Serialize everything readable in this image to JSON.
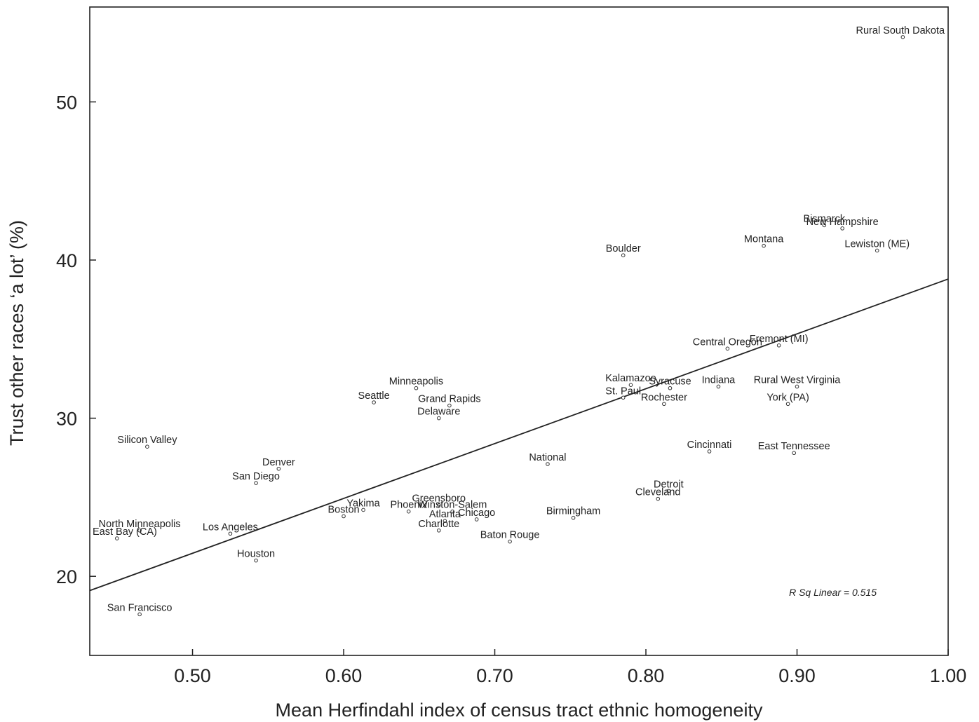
{
  "chart_data": {
    "type": "scatter",
    "xlabel": "Mean Herfindahl index of census tract ethnic homogeneity",
    "ylabel": "Trust other races ‘a lot’ (%)",
    "xlim": [
      0.432,
      1.0
    ],
    "ylim": [
      15,
      56
    ],
    "xticks": [
      "0.50",
      "0.60",
      "0.70",
      "0.80",
      "0.90",
      "1.00"
    ],
    "yticks": [
      "20",
      "30",
      "40",
      "50"
    ],
    "grid": false,
    "annotation": "R Sq Linear = 0.515",
    "fit_line": {
      "x": [
        0.432,
        1.0
      ],
      "y": [
        19.1,
        38.8
      ]
    },
    "points": [
      {
        "label": "Rural South Dakota",
        "x": 0.97,
        "y": 54.1
      },
      {
        "label": "Bismarck",
        "x": 0.918,
        "y": 42.2
      },
      {
        "label": "New Hampshire",
        "x": 0.93,
        "y": 42.0
      },
      {
        "label": "Montana",
        "x": 0.878,
        "y": 40.9
      },
      {
        "label": "Lewiston (ME)",
        "x": 0.953,
        "y": 40.6
      },
      {
        "label": "Boulder",
        "x": 0.785,
        "y": 40.3
      },
      {
        "label": "Fremont (MI)",
        "x": 0.888,
        "y": 34.6
      },
      {
        "label": "Central Oregon",
        "x": 0.854,
        "y": 34.4
      },
      {
        "label": "Kalamazoo",
        "x": 0.79,
        "y": 32.1
      },
      {
        "label": "Syracuse",
        "x": 0.816,
        "y": 31.9
      },
      {
        "label": "Indiana",
        "x": 0.848,
        "y": 32.0
      },
      {
        "label": "Rural West Virginia",
        "x": 0.9,
        "y": 32.0
      },
      {
        "label": "St. Paul",
        "x": 0.785,
        "y": 31.3
      },
      {
        "label": "Rochester",
        "x": 0.812,
        "y": 30.9
      },
      {
        "label": "York (PA)",
        "x": 0.894,
        "y": 30.9
      },
      {
        "label": "Minneapolis",
        "x": 0.648,
        "y": 31.9
      },
      {
        "label": "Seattle",
        "x": 0.62,
        "y": 31.0
      },
      {
        "label": "Grand Rapids",
        "x": 0.67,
        "y": 30.8
      },
      {
        "label": "Delaware",
        "x": 0.663,
        "y": 30.0
      },
      {
        "label": "Silicon Valley",
        "x": 0.47,
        "y": 28.2
      },
      {
        "label": "Cincinnati",
        "x": 0.842,
        "y": 27.9
      },
      {
        "label": "East Tennessee",
        "x": 0.898,
        "y": 27.8
      },
      {
        "label": "National",
        "x": 0.735,
        "y": 27.1
      },
      {
        "label": "Denver",
        "x": 0.557,
        "y": 26.8
      },
      {
        "label": "San Diego",
        "x": 0.542,
        "y": 25.9
      },
      {
        "label": "Detroit",
        "x": 0.815,
        "y": 25.4
      },
      {
        "label": "Cleveland",
        "x": 0.808,
        "y": 24.9
      },
      {
        "label": "Greensboro",
        "x": 0.663,
        "y": 24.5
      },
      {
        "label": "Yakima",
        "x": 0.613,
        "y": 24.2
      },
      {
        "label": "Winston-Salem",
        "x": 0.672,
        "y": 24.1
      },
      {
        "label": "Phoenix",
        "x": 0.643,
        "y": 24.1
      },
      {
        "label": "Birmingham",
        "x": 0.752,
        "y": 23.7
      },
      {
        "label": "Boston",
        "x": 0.6,
        "y": 23.8
      },
      {
        "label": "Chicago",
        "x": 0.688,
        "y": 23.6
      },
      {
        "label": "Atlanta",
        "x": 0.667,
        "y": 23.5
      },
      {
        "label": "Charlotte",
        "x": 0.663,
        "y": 22.9
      },
      {
        "label": "North Minneapolis",
        "x": 0.465,
        "y": 22.9
      },
      {
        "label": "Los Angeles",
        "x": 0.525,
        "y": 22.7
      },
      {
        "label": "East Bay (CA)",
        "x": 0.45,
        "y": 22.4
      },
      {
        "label": "Baton Rouge",
        "x": 0.71,
        "y": 22.2
      },
      {
        "label": "Houston",
        "x": 0.542,
        "y": 21.0
      },
      {
        "label": "San Francisco",
        "x": 0.465,
        "y": 17.6
      }
    ]
  }
}
